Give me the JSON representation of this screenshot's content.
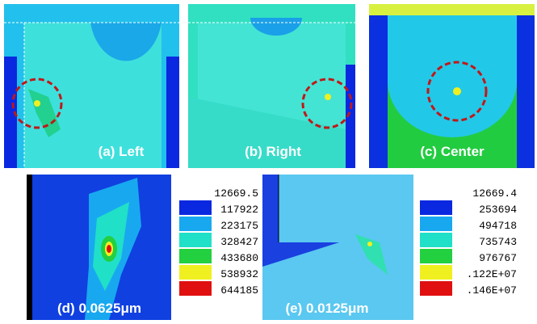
{
  "panels": [
    {
      "label": "(a) Left"
    },
    {
      "label": "(b) Right"
    },
    {
      "label": "(c) Center"
    },
    {
      "label": "(d) 0.0625μm"
    },
    {
      "label": "(e) 0.0125μm"
    }
  ],
  "legends": [
    {
      "labels": [
        "12669.5",
        "117922",
        "223175",
        "328427",
        "433680",
        "538932",
        "644185"
      ],
      "colors": [
        "#0a28e0",
        "#18a8f0",
        "#20e0c8",
        "#22d040",
        "#f0f020",
        "#e01010"
      ]
    },
    {
      "labels": [
        "12669.4",
        "253694",
        "494718",
        "735743",
        "976767",
        ".122E+07",
        ".146E+07"
      ],
      "colors": [
        "#0a28e0",
        "#18a8f0",
        "#20e0c8",
        "#22d040",
        "#f0f020",
        "#e01010"
      ]
    }
  ]
}
